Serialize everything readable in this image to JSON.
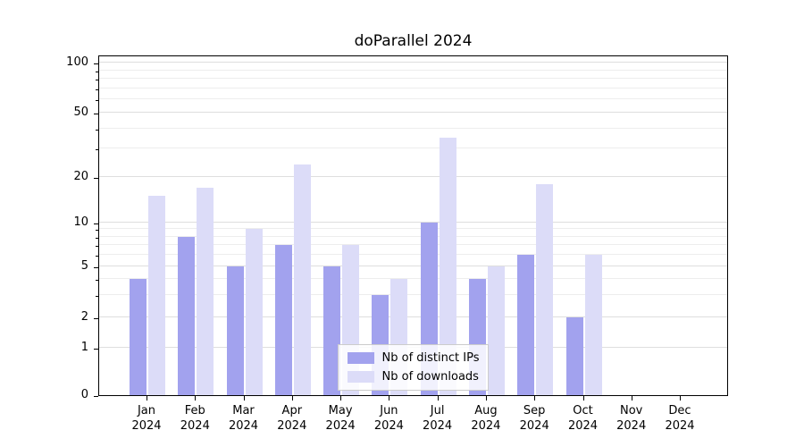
{
  "chart_data": {
    "type": "bar",
    "title": "doParallel 2024",
    "categories": [
      "Jan 2024",
      "Feb 2024",
      "Mar 2024",
      "Apr 2024",
      "May 2024",
      "Jun 2024",
      "Jul 2024",
      "Aug 2024",
      "Sep 2024",
      "Oct 2024",
      "Nov 2024",
      "Dec 2024"
    ],
    "series": [
      {
        "key": "distinct-ips",
        "name": "Nb of distinct IPs",
        "color": "#a2a2ee",
        "values": [
          4,
          8,
          5,
          7,
          5,
          3,
          10,
          4,
          6,
          2,
          0,
          0
        ]
      },
      {
        "key": "downloads",
        "name": "Nb of downloads",
        "color": "#dcdcf8",
        "values": [
          15,
          17,
          9,
          24,
          7,
          4,
          35,
          5,
          18,
          6,
          0,
          0
        ]
      }
    ],
    "xlabel": "",
    "ylabel": "",
    "yscale": "log",
    "ylim": [
      0,
      100
    ],
    "y_ticks": [
      0,
      1,
      2,
      5,
      10,
      20,
      50,
      100
    ],
    "y_minor_ticks": [
      3,
      4,
      6,
      7,
      8,
      9,
      30,
      40,
      60,
      70,
      80,
      90
    ],
    "grid": true,
    "legend_position": "lower center"
  }
}
